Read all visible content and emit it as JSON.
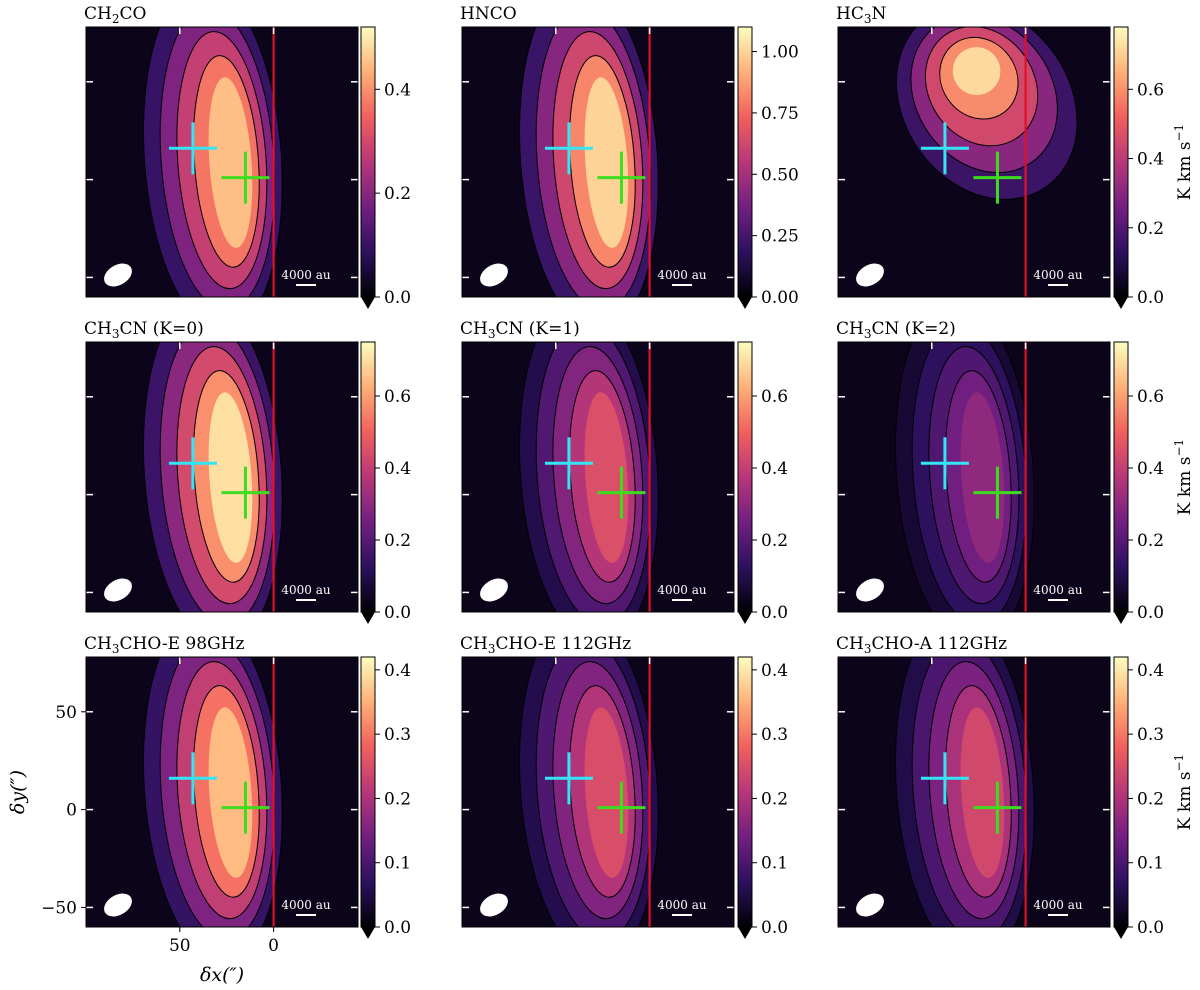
{
  "figure": {
    "xlabel": "δx(″)",
    "ylabel": "δy(″)",
    "colorbar_label": "K km s",
    "colorbar_label_exp": "−1",
    "scale_bar_label": "4000 au",
    "x_ticks": [
      "50",
      "0"
    ],
    "y_ticks": [
      "50",
      "0",
      "−50"
    ],
    "colormap": [
      "#000004",
      "#2c115f",
      "#721f81",
      "#b73779",
      "#f1605d",
      "#feb078",
      "#fcfdbf"
    ],
    "contour_color": "#000000",
    "vline_color": "#e0102a",
    "marker_colors": {
      "cyan": "#33e5f5",
      "green": "#3ddc1e"
    }
  },
  "chart_data": [
    {
      "type": "heatmap",
      "title_main": "CH",
      "title_sub": "2",
      "title_rest": "CO",
      "colorbar_ticks": [
        "0.0",
        "0.2",
        "0.4"
      ],
      "colorbar_tick_values": [
        0.0,
        0.2,
        0.4
      ],
      "vmax": 0.52,
      "peak": 0.45,
      "shape": "ridge",
      "y_ticks_shown": false,
      "x_ticks_shown": false,
      "cbar_label_shown": false
    },
    {
      "type": "heatmap",
      "title_main": "HNCO",
      "title_sub": "",
      "title_rest": "",
      "colorbar_ticks": [
        "0.00",
        "0.25",
        "0.50",
        "0.75",
        "1.00"
      ],
      "colorbar_tick_values": [
        0.0,
        0.25,
        0.5,
        0.75,
        1.0
      ],
      "vmax": 1.1,
      "peak": 1.0,
      "shape": "ridge",
      "y_ticks_shown": false,
      "x_ticks_shown": false,
      "cbar_label_shown": false
    },
    {
      "type": "heatmap",
      "title_main": "HC",
      "title_sub": "3",
      "title_rest": "N",
      "colorbar_ticks": [
        "0.0",
        "0.2",
        "0.4",
        "0.6"
      ],
      "colorbar_tick_values": [
        0.0,
        0.2,
        0.4,
        0.6
      ],
      "vmax": 0.78,
      "peak": 0.72,
      "shape": "blob",
      "y_ticks_shown": false,
      "x_ticks_shown": false,
      "cbar_label_shown": true
    },
    {
      "type": "heatmap",
      "title_main": "CH",
      "title_sub": "3",
      "title_rest": "CN (K=0)",
      "colorbar_ticks": [
        "0.0",
        "0.2",
        "0.4",
        "0.6"
      ],
      "colorbar_tick_values": [
        0.0,
        0.2,
        0.4,
        0.6
      ],
      "vmax": 0.75,
      "peak": 0.7,
      "shape": "ridge",
      "y_ticks_shown": false,
      "x_ticks_shown": false,
      "cbar_label_shown": false
    },
    {
      "type": "heatmap",
      "title_main": "CH",
      "title_sub": "3",
      "title_rest": "CN (K=1)",
      "colorbar_ticks": [
        "0.0",
        "0.2",
        "0.4",
        "0.6"
      ],
      "colorbar_tick_values": [
        0.0,
        0.2,
        0.4,
        0.6
      ],
      "vmax": 0.75,
      "peak": 0.45,
      "shape": "ridge",
      "y_ticks_shown": false,
      "x_ticks_shown": false,
      "cbar_label_shown": false
    },
    {
      "type": "heatmap",
      "title_main": "CH",
      "title_sub": "3",
      "title_rest": "CN (K=2)",
      "colorbar_ticks": [
        "0.0",
        "0.2",
        "0.4",
        "0.6"
      ],
      "colorbar_tick_values": [
        0.0,
        0.2,
        0.4,
        0.6
      ],
      "vmax": 0.75,
      "peak": 0.3,
      "shape": "ridge",
      "y_ticks_shown": false,
      "x_ticks_shown": false,
      "cbar_label_shown": true
    },
    {
      "type": "heatmap",
      "title_main": "CH",
      "title_sub": "3",
      "title_rest": "CHO-E 98GHz",
      "colorbar_ticks": [
        "0.0",
        "0.1",
        "0.2",
        "0.3",
        "0.4"
      ],
      "colorbar_tick_values": [
        0.0,
        0.1,
        0.2,
        0.3,
        0.4
      ],
      "vmax": 0.42,
      "peak": 0.36,
      "shape": "ridge",
      "y_ticks_shown": true,
      "x_ticks_shown": true,
      "cbar_label_shown": false
    },
    {
      "type": "heatmap",
      "title_main": "CH",
      "title_sub": "3",
      "title_rest": "CHO-E 112GHz",
      "colorbar_ticks": [
        "0.0",
        "0.1",
        "0.2",
        "0.3",
        "0.4"
      ],
      "colorbar_tick_values": [
        0.0,
        0.1,
        0.2,
        0.3,
        0.4
      ],
      "vmax": 0.42,
      "peak": 0.25,
      "shape": "ridge",
      "y_ticks_shown": false,
      "x_ticks_shown": false,
      "cbar_label_shown": false
    },
    {
      "type": "heatmap",
      "title_main": "CH",
      "title_sub": "3",
      "title_rest": "CHO-A 112GHz",
      "colorbar_ticks": [
        "0.0",
        "0.1",
        "0.2",
        "0.3",
        "0.4"
      ],
      "colorbar_tick_values": [
        0.0,
        0.1,
        0.2,
        0.3,
        0.4
      ],
      "vmax": 0.42,
      "peak": 0.24,
      "shape": "ridge",
      "y_ticks_shown": false,
      "x_ticks_shown": false,
      "cbar_label_shown": true
    }
  ]
}
